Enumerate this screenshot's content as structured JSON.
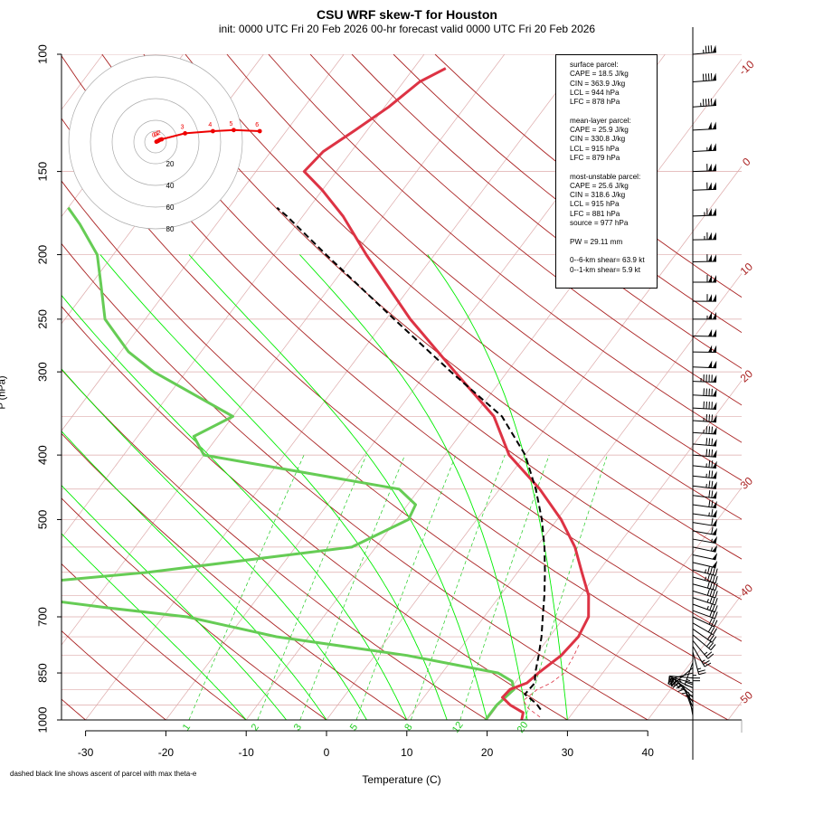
{
  "title": "CSU WRF skew-T for Houston",
  "subtitle": "init: 0000 UTC Fri 20 Feb 2026     00-hr forecast valid 0000 UTC Fri 20 Feb 2026",
  "xlabel": "Temperature (C)",
  "ylabel": "P (hPa)",
  "footnote": "dashed black line shows ascent of parcel with max theta-e",
  "params": {
    "surface": [
      "surface parcel:",
      "CAPE = 18.5 J/kg",
      "CIN = 363.9 J/kg",
      "LCL = 944 hPa",
      "LFC = 878 hPa"
    ],
    "mixed": [
      "mean-layer parcel:",
      "CAPE = 25.9 J/kg",
      "CIN = 330.8 J/kg",
      "LCL = 915 hPa",
      "LFC = 879 hPa"
    ],
    "mu": [
      "most-unstable parcel:",
      "CAPE = 25.6 J/kg",
      "CIN = 318.6 J/kg",
      "LCL = 915 hPa",
      "LFC = 881 hPa",
      "source = 977 hPa"
    ],
    "pw": "PW =  29.11 mm",
    "shear": [
      "0--6-km shear= 63.9 kt",
      "0--1-km shear= 5.9 kt"
    ]
  },
  "colors": {
    "temperature": "#dd3344",
    "dewpoint": "#66cc55",
    "parcel": "#000000",
    "isotherm": "#aa2222",
    "dry_adiabat": "#aa2222",
    "mixing_ratio": "#22cc22",
    "moist_adiabat": "#00ee00",
    "hodograph": "#ee0000",
    "grid": "#ddaaaa"
  },
  "chart_data": {
    "type": "line",
    "subtype": "skew-t",
    "xlim": [
      -33,
      52
    ],
    "ylim": [
      1000,
      100
    ],
    "y_scale": "log",
    "pressure_ticks": [
      100,
      150,
      200,
      250,
      300,
      400,
      500,
      700,
      850,
      1000
    ],
    "temp_ticks": [
      -30,
      -20,
      -10,
      0,
      10,
      20,
      30,
      40
    ],
    "isotherm_labels": [
      {
        "t": -10,
        "label": "-10"
      },
      {
        "t": 0,
        "label": "0"
      },
      {
        "t": 10,
        "label": "10"
      },
      {
        "t": 20,
        "label": "20"
      },
      {
        "t": 30,
        "label": "30"
      },
      {
        "t": 40,
        "label": "40"
      },
      {
        "t": 50,
        "label": "50"
      }
    ],
    "mixing_ratio_labels": [
      "1",
      "2",
      "3",
      "5",
      "8",
      "12",
      "20"
    ],
    "isotherm_range": [
      -120,
      50
    ],
    "theta_values": [
      -30,
      -20,
      -10,
      0,
      10,
      20,
      30,
      40,
      50,
      60,
      70,
      80,
      90,
      100,
      110,
      120,
      130,
      140,
      150,
      160
    ],
    "moist_adiabat_wetbulbs": [
      -10,
      -5,
      0,
      5,
      10,
      15,
      20,
      25,
      30
    ],
    "mixing_ratio_values": [
      1,
      2,
      3,
      5,
      8,
      12,
      20
    ],
    "temperature": [
      [
        1000,
        24.3
      ],
      [
        975,
        23.8
      ],
      [
        950,
        21.5
      ],
      [
        925,
        19.8
      ],
      [
        900,
        20.0
      ],
      [
        880,
        21.5
      ],
      [
        850,
        22.0
      ],
      [
        800,
        23.2
      ],
      [
        750,
        23.6
      ],
      [
        700,
        23.0
      ],
      [
        650,
        21.0
      ],
      [
        600,
        18.0
      ],
      [
        550,
        14.8
      ],
      [
        500,
        10.5
      ],
      [
        450,
        5.0
      ],
      [
        400,
        -2.0
      ],
      [
        350,
        -7.5
      ],
      [
        300,
        -16.5
      ],
      [
        250,
        -27.0
      ],
      [
        200,
        -38.5
      ],
      [
        175,
        -45.0
      ],
      [
        160,
        -50.0
      ],
      [
        150,
        -54.0
      ],
      [
        140,
        -53.5
      ],
      [
        130,
        -51.5
      ],
      [
        120,
        -49.5
      ],
      [
        110,
        -48.0
      ],
      [
        105,
        -46.0
      ]
    ],
    "dewpoint": [
      [
        1000,
        19.8
      ],
      [
        950,
        19.8
      ],
      [
        900,
        20.5
      ],
      [
        875,
        19.5
      ],
      [
        850,
        17.0
      ],
      [
        800,
        4.0
      ],
      [
        750,
        -14.0
      ],
      [
        700,
        -27.0
      ],
      [
        680,
        -37.0
      ],
      [
        650,
        -51.0
      ],
      [
        625,
        -51.0
      ],
      [
        600,
        -36.0
      ],
      [
        550,
        -13.0
      ],
      [
        500,
        -8.5
      ],
      [
        475,
        -9.0
      ],
      [
        450,
        -12.5
      ],
      [
        400,
        -40.0
      ],
      [
        375,
        -43.0
      ],
      [
        350,
        -40.0
      ],
      [
        300,
        -54.0
      ],
      [
        280,
        -59.0
      ],
      [
        250,
        -65.0
      ],
      [
        220,
        -69.0
      ],
      [
        200,
        -72.0
      ],
      [
        180,
        -77.0
      ],
      [
        170,
        -80.0
      ]
    ],
    "parcel": [
      [
        965,
        25.7
      ],
      [
        945,
        24.6
      ],
      [
        915,
        22.3
      ],
      [
        880,
        22.5
      ],
      [
        850,
        21.6
      ],
      [
        800,
        20.4
      ],
      [
        750,
        19.0
      ],
      [
        700,
        17.3
      ],
      [
        650,
        15.5
      ],
      [
        600,
        13.4
      ],
      [
        550,
        11.0
      ],
      [
        500,
        8.1
      ],
      [
        450,
        4.5
      ],
      [
        400,
        0.0
      ],
      [
        350,
        -6.5
      ],
      [
        300,
        -17.0
      ],
      [
        250,
        -29.0
      ],
      [
        200,
        -43.5
      ],
      [
        175,
        -52.0
      ],
      [
        170,
        -54.0
      ]
    ],
    "parcel_alt": [
      [
        990,
        26.3
      ],
      [
        960,
        24.0
      ],
      [
        935,
        22.7
      ],
      [
        900,
        23.4
      ],
      [
        880,
        24.5
      ],
      [
        850,
        25.2
      ],
      [
        800,
        24.8
      ],
      [
        770,
        24.4
      ]
    ],
    "winds": [
      [
        997,
        8,
        0
      ],
      [
        985,
        10,
        10
      ],
      [
        970,
        12,
        20
      ],
      [
        955,
        14,
        25
      ],
      [
        940,
        16,
        35
      ],
      [
        925,
        18,
        45
      ],
      [
        910,
        20,
        55
      ],
      [
        895,
        22,
        65
      ],
      [
        880,
        22,
        75
      ],
      [
        865,
        22,
        85
      ],
      [
        850,
        24,
        105
      ],
      [
        835,
        26,
        130
      ],
      [
        820,
        26,
        160
      ],
      [
        805,
        26,
        180
      ],
      [
        790,
        26,
        195
      ],
      [
        775,
        27,
        210
      ],
      [
        760,
        27,
        220
      ],
      [
        745,
        28,
        230
      ],
      [
        730,
        28,
        235
      ],
      [
        715,
        29,
        240
      ],
      [
        700,
        30,
        245
      ],
      [
        685,
        32,
        250
      ],
      [
        670,
        35,
        250
      ],
      [
        655,
        37,
        252
      ],
      [
        640,
        40,
        253
      ],
      [
        625,
        42,
        255
      ],
      [
        610,
        45,
        255
      ],
      [
        595,
        47,
        256
      ],
      [
        580,
        50,
        257
      ],
      [
        565,
        52,
        258
      ],
      [
        550,
        55,
        258
      ],
      [
        535,
        57,
        260
      ],
      [
        520,
        60,
        260
      ],
      [
        505,
        62,
        261
      ],
      [
        490,
        65,
        262
      ],
      [
        475,
        68,
        262
      ],
      [
        460,
        70,
        263
      ],
      [
        445,
        73,
        263
      ],
      [
        430,
        75,
        264
      ],
      [
        415,
        77,
        264
      ],
      [
        400,
        80,
        265
      ],
      [
        385,
        82,
        265
      ],
      [
        370,
        85,
        266
      ],
      [
        355,
        87,
        266
      ],
      [
        340,
        90,
        267
      ],
      [
        325,
        92,
        267
      ],
      [
        310,
        95,
        268
      ],
      [
        295,
        98,
        268
      ],
      [
        280,
        100,
        269
      ],
      [
        265,
        102,
        269
      ],
      [
        250,
        105,
        270
      ],
      [
        235,
        108,
        270
      ],
      [
        220,
        110,
        270
      ],
      [
        205,
        112,
        271
      ],
      [
        190,
        115,
        271
      ],
      [
        175,
        115,
        272
      ],
      [
        160,
        112,
        272
      ],
      [
        150,
        110,
        272
      ],
      [
        140,
        105,
        273
      ],
      [
        130,
        100,
        273
      ],
      [
        120,
        95,
        274
      ],
      [
        110,
        90,
        274
      ],
      [
        100,
        85,
        275
      ]
    ],
    "hodograph": {
      "rings": [
        20,
        40,
        60,
        80
      ],
      "ring_labels": [
        "20",
        "40",
        "60",
        "80"
      ],
      "points": [
        {
          "u": 0.5,
          "v": 0.3,
          "label": "0"
        },
        {
          "u": 1.5,
          "v": 1.0,
          "label": "0"
        },
        {
          "u": 2.5,
          "v": 2.0,
          "label": "1"
        },
        {
          "u": 3.5,
          "v": 2.5,
          "label": "2"
        },
        {
          "u": 17,
          "v": 8,
          "label": "3"
        },
        {
          "u": 33,
          "v": 10,
          "label": "4"
        },
        {
          "u": 45,
          "v": 11,
          "label": "5"
        },
        {
          "u": 60,
          "v": 10,
          "label": "6"
        }
      ]
    }
  }
}
